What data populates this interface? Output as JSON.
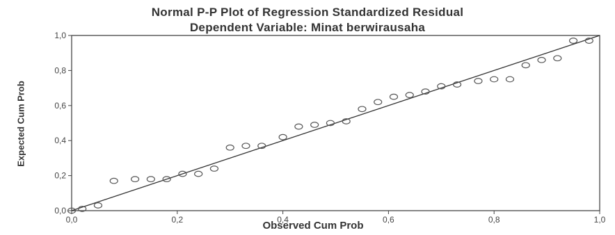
{
  "chart_data": {
    "type": "scatter",
    "title": "Normal P-P Plot of Regression Standardized Residual",
    "subtitle": "Dependent Variable: Minat berwirausaha",
    "xlabel": "Observed Cum Prob",
    "ylabel": "Expected Cum Prob",
    "xlim": [
      0.0,
      1.0
    ],
    "ylim": [
      0.0,
      1.0
    ],
    "x_ticks": [
      "0,0",
      "0,2",
      "0,4",
      "0,6",
      "0,8",
      "1,0"
    ],
    "y_ticks": [
      "0,0",
      "0,2",
      "0,4",
      "0,6",
      "0,8",
      "1,0"
    ],
    "grid": false,
    "reference_line": {
      "from": [
        0.0,
        0.0
      ],
      "to": [
        1.0,
        1.0
      ]
    },
    "points": [
      {
        "x": 0.0,
        "y": 0.0
      },
      {
        "x": 0.02,
        "y": 0.01
      },
      {
        "x": 0.05,
        "y": 0.03
      },
      {
        "x": 0.08,
        "y": 0.17
      },
      {
        "x": 0.12,
        "y": 0.18
      },
      {
        "x": 0.15,
        "y": 0.18
      },
      {
        "x": 0.18,
        "y": 0.18
      },
      {
        "x": 0.21,
        "y": 0.21
      },
      {
        "x": 0.24,
        "y": 0.21
      },
      {
        "x": 0.27,
        "y": 0.24
      },
      {
        "x": 0.3,
        "y": 0.36
      },
      {
        "x": 0.33,
        "y": 0.37
      },
      {
        "x": 0.36,
        "y": 0.37
      },
      {
        "x": 0.4,
        "y": 0.42
      },
      {
        "x": 0.43,
        "y": 0.48
      },
      {
        "x": 0.46,
        "y": 0.49
      },
      {
        "x": 0.49,
        "y": 0.5
      },
      {
        "x": 0.52,
        "y": 0.51
      },
      {
        "x": 0.55,
        "y": 0.58
      },
      {
        "x": 0.58,
        "y": 0.62
      },
      {
        "x": 0.61,
        "y": 0.65
      },
      {
        "x": 0.64,
        "y": 0.66
      },
      {
        "x": 0.67,
        "y": 0.68
      },
      {
        "x": 0.7,
        "y": 0.71
      },
      {
        "x": 0.73,
        "y": 0.72
      },
      {
        "x": 0.77,
        "y": 0.74
      },
      {
        "x": 0.8,
        "y": 0.75
      },
      {
        "x": 0.83,
        "y": 0.75
      },
      {
        "x": 0.86,
        "y": 0.83
      },
      {
        "x": 0.89,
        "y": 0.86
      },
      {
        "x": 0.92,
        "y": 0.87
      },
      {
        "x": 0.95,
        "y": 0.97
      },
      {
        "x": 0.98,
        "y": 0.97
      }
    ],
    "colors": {
      "frame": "#444444",
      "points": "#555555",
      "line": "#333333",
      "text": "#333333"
    }
  }
}
